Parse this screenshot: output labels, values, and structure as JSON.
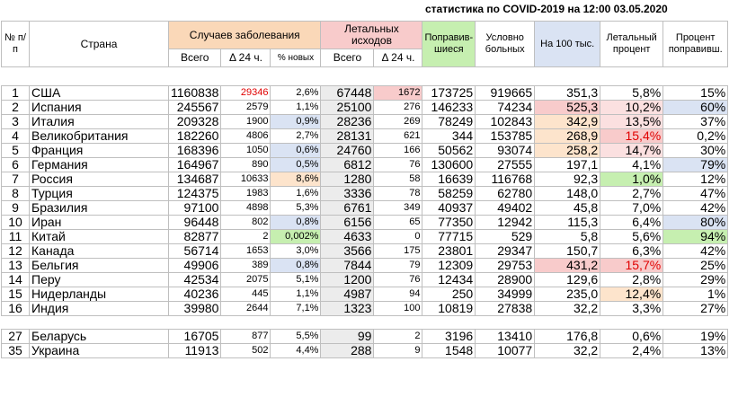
{
  "title": "статистика по COVID-2019 на 12:00 03.05.2020",
  "headers": {
    "num": "№ п/п",
    "country": "Страна",
    "cases": "Случаев заболевания",
    "deaths": "Летальных исходов",
    "recovered": "Поправив-шиеся",
    "sick": "Условно больных",
    "per100k": "На 100 тыс.",
    "lethal_pct": "Летальный процент",
    "recovered_pct": "Процент поправивш.",
    "cases_total": "Всего",
    "cases_24h": "Δ 24 ч.",
    "cases_new_pct": "% новых",
    "deaths_total": "Всего",
    "deaths_24h": "Δ 24 ч."
  },
  "rows": [
    {
      "n": "1",
      "country": "США",
      "total": "1160838",
      "d24": "29346",
      "newp": "2,6%",
      "deaths": "67448",
      "dd24": "1672",
      "rec": "173725",
      "sick": "919665",
      "per100k": "351,3",
      "lethal": "5,8%",
      "recp": "15%"
    },
    {
      "n": "2",
      "country": "Испания",
      "total": "245567",
      "d24": "2579",
      "newp": "1,1%",
      "deaths": "25100",
      "dd24": "276",
      "rec": "146233",
      "sick": "74234",
      "per100k": "525,3",
      "lethal": "10,2%",
      "recp": "60%"
    },
    {
      "n": "3",
      "country": "Италия",
      "total": "209328",
      "d24": "1900",
      "newp": "0,9%",
      "deaths": "28236",
      "dd24": "269",
      "rec": "78249",
      "sick": "102843",
      "per100k": "342,9",
      "lethal": "13,5%",
      "recp": "37%"
    },
    {
      "n": "4",
      "country": "Великобритания",
      "total": "182260",
      "d24": "4806",
      "newp": "2,7%",
      "deaths": "28131",
      "dd24": "621",
      "rec": "344",
      "sick": "153785",
      "per100k": "268,9",
      "lethal": "15,4%",
      "recp": "0,2%"
    },
    {
      "n": "5",
      "country": "Франция",
      "total": "168396",
      "d24": "1050",
      "newp": "0,6%",
      "deaths": "24760",
      "dd24": "166",
      "rec": "50562",
      "sick": "93074",
      "per100k": "258,2",
      "lethal": "14,7%",
      "recp": "30%"
    },
    {
      "n": "6",
      "country": "Германия",
      "total": "164967",
      "d24": "890",
      "newp": "0,5%",
      "deaths": "6812",
      "dd24": "76",
      "rec": "130600",
      "sick": "27555",
      "per100k": "197,1",
      "lethal": "4,1%",
      "recp": "79%"
    },
    {
      "n": "7",
      "country": "Россия",
      "total": "134687",
      "d24": "10633",
      "newp": "8,6%",
      "deaths": "1280",
      "dd24": "58",
      "rec": "16639",
      "sick": "116768",
      "per100k": "92,3",
      "lethal": "1,0%",
      "recp": "12%"
    },
    {
      "n": "8",
      "country": "Турция",
      "total": "124375",
      "d24": "1983",
      "newp": "1,6%",
      "deaths": "3336",
      "dd24": "78",
      "rec": "58259",
      "sick": "62780",
      "per100k": "148,0",
      "lethal": "2,7%",
      "recp": "47%"
    },
    {
      "n": "9",
      "country": "Бразилия",
      "total": "97100",
      "d24": "4898",
      "newp": "5,3%",
      "deaths": "6761",
      "dd24": "349",
      "rec": "40937",
      "sick": "49402",
      "per100k": "45,8",
      "lethal": "7,0%",
      "recp": "42%"
    },
    {
      "n": "10",
      "country": "Иран",
      "total": "96448",
      "d24": "802",
      "newp": "0,8%",
      "deaths": "6156",
      "dd24": "65",
      "rec": "77350",
      "sick": "12942",
      "per100k": "115,3",
      "lethal": "6,4%",
      "recp": "80%"
    },
    {
      "n": "11",
      "country": "Китай",
      "total": "82877",
      "d24": "2",
      "newp": "0,002%",
      "deaths": "4633",
      "dd24": "0",
      "rec": "77715",
      "sick": "529",
      "per100k": "5,8",
      "lethal": "5,6%",
      "recp": "94%"
    },
    {
      "n": "12",
      "country": "Канада",
      "total": "56714",
      "d24": "1653",
      "newp": "3,0%",
      "deaths": "3566",
      "dd24": "175",
      "rec": "23801",
      "sick": "29347",
      "per100k": "150,7",
      "lethal": "6,3%",
      "recp": "42%"
    },
    {
      "n": "13",
      "country": "Бельгия",
      "total": "49906",
      "d24": "389",
      "newp": "0,8%",
      "deaths": "7844",
      "dd24": "79",
      "rec": "12309",
      "sick": "29753",
      "per100k": "431,2",
      "lethal": "15,7%",
      "recp": "25%"
    },
    {
      "n": "14",
      "country": "Перу",
      "total": "42534",
      "d24": "2075",
      "newp": "5,1%",
      "deaths": "1200",
      "dd24": "76",
      "rec": "12434",
      "sick": "28900",
      "per100k": "129,6",
      "lethal": "2,8%",
      "recp": "29%"
    },
    {
      "n": "15",
      "country": "Нидерланды",
      "total": "40236",
      "d24": "445",
      "newp": "1,1%",
      "deaths": "4987",
      "dd24": "94",
      "rec": "250",
      "sick": "34999",
      "per100k": "235,0",
      "lethal": "12,4%",
      "recp": "1%"
    },
    {
      "n": "16",
      "country": "Индия",
      "total": "39980",
      "d24": "2644",
      "newp": "7,1%",
      "deaths": "1323",
      "dd24": "100",
      "rec": "10819",
      "sick": "27838",
      "per100k": "32,2",
      "lethal": "3,3%",
      "recp": "27%"
    }
  ],
  "extra_rows": [
    {
      "n": "27",
      "country": "Беларусь",
      "total": "16705",
      "d24": "877",
      "newp": "5,5%",
      "deaths": "99",
      "dd24": "2",
      "rec": "3196",
      "sick": "13410",
      "per100k": "176,8",
      "lethal": "0,6%",
      "recp": "19%"
    },
    {
      "n": "35",
      "country": "Украина",
      "total": "11913",
      "d24": "502",
      "newp": "4,4%",
      "deaths": "288",
      "dd24": "9",
      "rec": "1548",
      "sick": "10077",
      "per100k": "32,2",
      "lethal": "2,4%",
      "recp": "13%"
    }
  ],
  "colors": {
    "orange": "#fad8b8",
    "pink": "#f8cbcb",
    "green": "#c6efb0",
    "light_blue": "#dae3f3",
    "red_text": "#e00000"
  }
}
